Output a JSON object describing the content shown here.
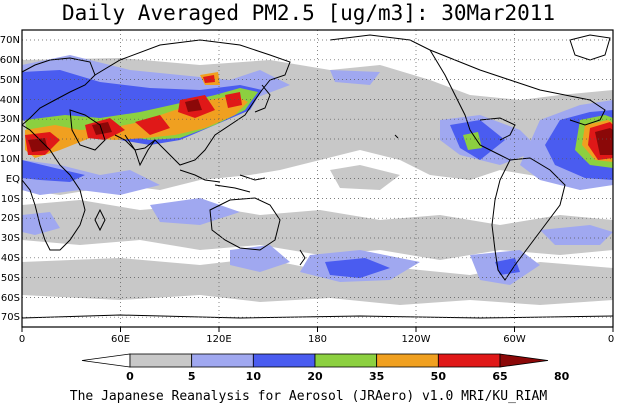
{
  "title": "Daily Averaged PM2.5 [ug/m3]: 30Mar2011",
  "footer": "The Japanese Reanalysis for Aerosol (JRAero) v1.0 MRI/KU_RIAM",
  "map": {
    "projection": "equirectangular",
    "lon_range": [
      0,
      360
    ],
    "lat_range": [
      -75,
      75
    ],
    "grid": "dotted",
    "lat_labels": [
      "70N",
      "60N",
      "50N",
      "40N",
      "30N",
      "20N",
      "10N",
      "EQ",
      "10S",
      "20S",
      "30S",
      "40S",
      "50S",
      "60S",
      "70S"
    ],
    "lon_labels": [
      "0",
      "60E",
      "120E",
      "180",
      "120W",
      "60W",
      "0"
    ]
  },
  "colorbar": {
    "levels": [
      "0",
      "5",
      "10",
      "20",
      "35",
      "50",
      "65",
      "80"
    ],
    "colors": [
      "#ffffff",
      "#c8c8c8",
      "#a0a8f0",
      "#4a5cf0",
      "#8cd040",
      "#f0a020",
      "#e01818",
      "#8b0808"
    ]
  },
  "colors": {
    "coast": "#000000",
    "grid": "#555555"
  }
}
